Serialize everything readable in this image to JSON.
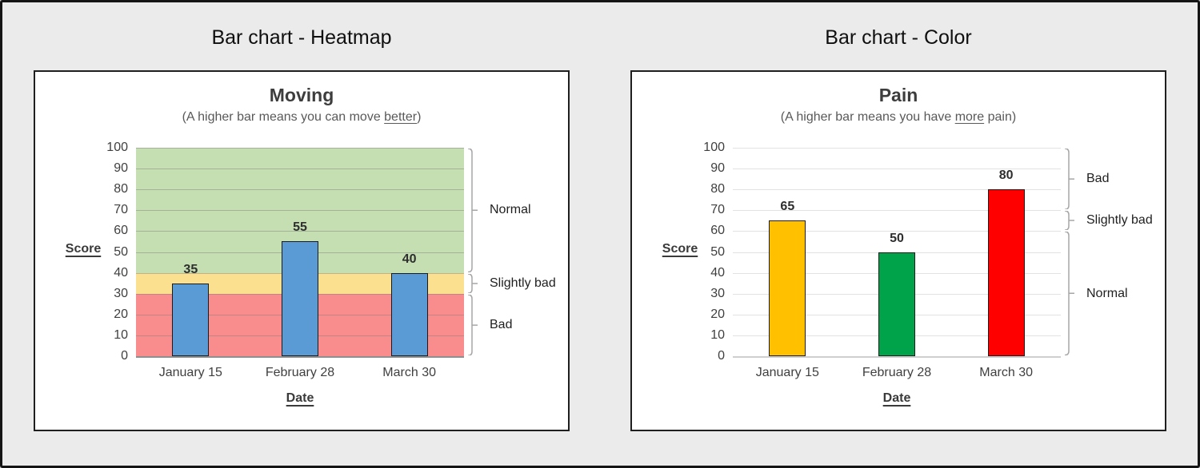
{
  "page": {
    "background": "#EBEBEB",
    "border_color": "#141414"
  },
  "chart_data": [
    {
      "type": "bar",
      "panel_heading": "Bar chart - Heatmap",
      "title": "Moving",
      "subtitle": {
        "prefix": "(A higher bar means you can move ",
        "underlined": "better",
        "suffix": ")"
      },
      "ylabel": "Score",
      "xlabel": "Date",
      "categories": [
        "January 15",
        "February 28",
        "March 30"
      ],
      "values": [
        35,
        55,
        40
      ],
      "bar_colors": [
        "#5B9BD5",
        "#5B9BD5",
        "#5B9BD5"
      ],
      "bar_border_color": "#1C1C1C",
      "ylim": [
        0,
        100
      ],
      "yticks": [
        0,
        10,
        20,
        30,
        40,
        50,
        60,
        70,
        80,
        90,
        100
      ],
      "grid": true,
      "legend": "none",
      "zones_filled": true,
      "zones": [
        {
          "label": "Bad",
          "from": 0,
          "to": 30,
          "fill": "#F98C8C"
        },
        {
          "label": "Slightly bad",
          "from": 30,
          "to": 40,
          "fill": "#FBE18F"
        },
        {
          "label": "Normal",
          "from": 40,
          "to": 100,
          "fill": "#C5DFB2"
        }
      ],
      "bracket_color": "#A6A6A6"
    },
    {
      "type": "bar",
      "panel_heading": "Bar chart - Color",
      "title": "Pain",
      "subtitle": {
        "prefix": "(A higher bar means you have ",
        "underlined": "more",
        "suffix": " pain)"
      },
      "ylabel": "Score",
      "xlabel": "Date",
      "categories": [
        "January 15",
        "February 28",
        "March 30"
      ],
      "values": [
        65,
        50,
        80
      ],
      "bar_colors": [
        "#FFC000",
        "#00A24A",
        "#FF0000"
      ],
      "bar_border_color": "#1C1C1C",
      "ylim": [
        0,
        100
      ],
      "yticks": [
        0,
        10,
        20,
        30,
        40,
        50,
        60,
        70,
        80,
        90,
        100
      ],
      "grid": true,
      "legend": "none",
      "zones_filled": false,
      "zones": [
        {
          "label": "Bad",
          "from": 70,
          "to": 100,
          "fill": null
        },
        {
          "label": "Slightly bad",
          "from": 60,
          "to": 70,
          "fill": null
        },
        {
          "label": "Normal",
          "from": 0,
          "to": 60,
          "fill": null
        }
      ],
      "bracket_color": "#A6A6A6"
    }
  ]
}
